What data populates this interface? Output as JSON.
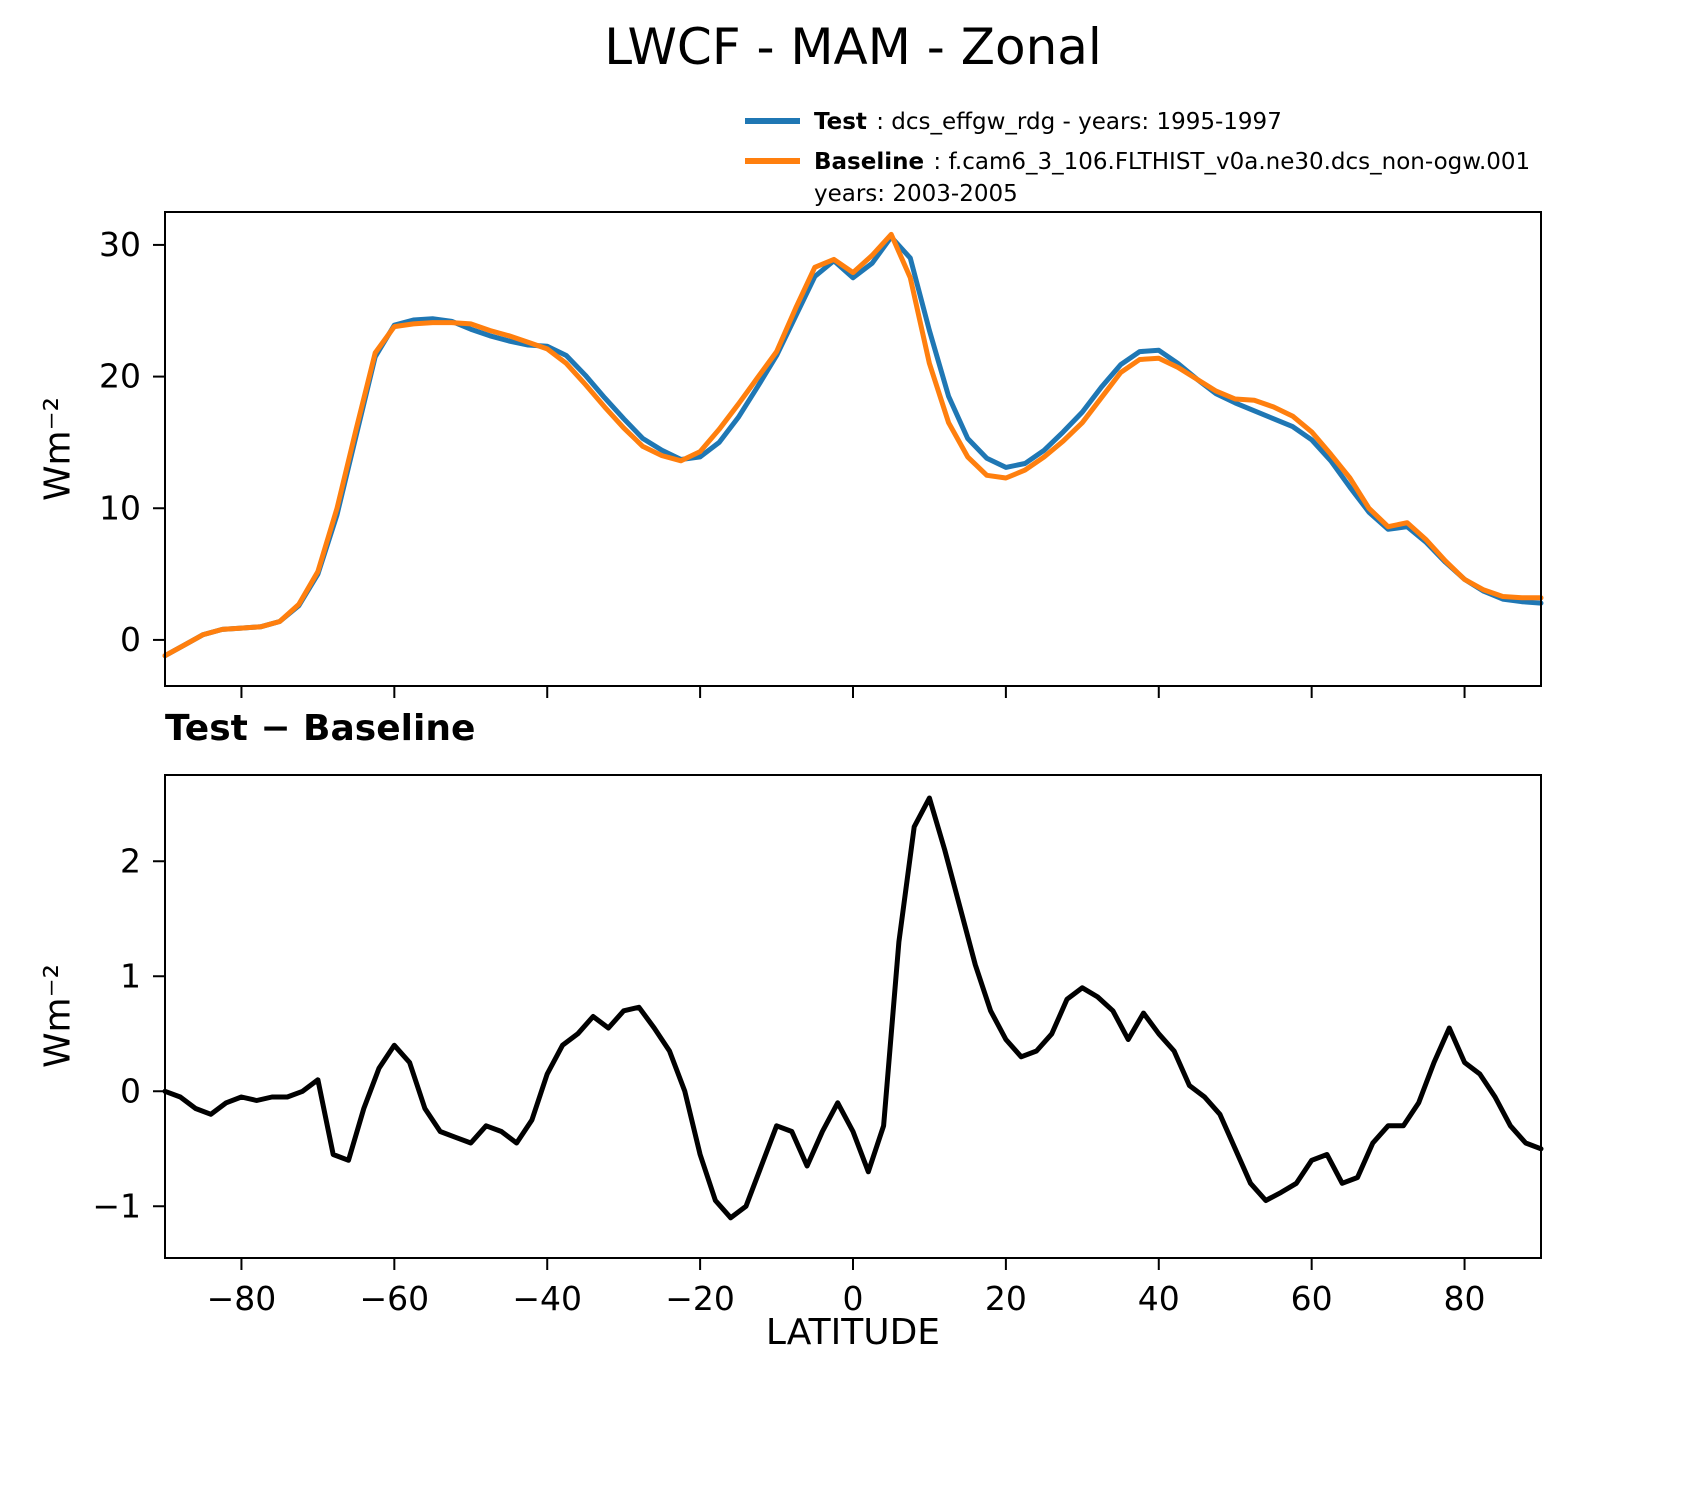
{
  "title": "LWCF - MAM - Zonal",
  "legend": {
    "items": [
      {
        "name": "Test",
        "label_bold": "Test",
        "label_rest": " : dcs_effgw_rdg - years: 1995-1997",
        "label_line2": "",
        "color": "#1f77b4"
      },
      {
        "name": "Baseline",
        "label_bold": "Baseline",
        "label_rest": " : f.cam6_3_106.FLTHIST_v0a.ne30.dcs_non-ogw.001",
        "label_line2": "years: 2003-2005",
        "color": "#ff7f0e"
      }
    ]
  },
  "chart_data": [
    {
      "type": "line",
      "title": "LWCF - MAM - Zonal",
      "xlabel": "",
      "ylabel": "Wm⁻²",
      "xlim": [
        -90,
        90
      ],
      "ylim": [
        -3.5,
        32.5
      ],
      "yticks": [
        0,
        10,
        20,
        30
      ],
      "xticks": [
        -80,
        -60,
        -40,
        -20,
        0,
        20,
        40,
        60,
        80
      ],
      "show_xtick_labels": false,
      "grid": false,
      "legend_position": "upper-right-above",
      "x": [
        -90,
        -87.5,
        -85,
        -82.5,
        -80,
        -77.5,
        -75,
        -72.5,
        -70,
        -67.5,
        -65,
        -62.5,
        -60,
        -57.5,
        -55,
        -52.5,
        -50,
        -47.5,
        -45,
        -42.5,
        -40,
        -37.5,
        -35,
        -32.5,
        -30,
        -27.5,
        -25,
        -22.5,
        -20,
        -17.5,
        -15,
        -12.5,
        -10,
        -7.5,
        -5,
        -2.5,
        0,
        2.5,
        5,
        7.5,
        10,
        12.5,
        15,
        17.5,
        20,
        22.5,
        25,
        27.5,
        30,
        32.5,
        35,
        37.5,
        40,
        42.5,
        45,
        47.5,
        50,
        52.5,
        55,
        57.5,
        60,
        62.5,
        65,
        67.5,
        70,
        72.5,
        75,
        77.5,
        80,
        82.5,
        85,
        87.5,
        90
      ],
      "series": [
        {
          "name": "Test",
          "color": "#1f77b4",
          "values": [
            -1.2,
            -0.4,
            0.4,
            0.8,
            0.9,
            1.0,
            1.4,
            2.6,
            5.0,
            9.5,
            15.5,
            21.5,
            23.9,
            24.3,
            24.4,
            24.2,
            23.6,
            23.1,
            22.7,
            22.4,
            22.3,
            21.6,
            20.1,
            18.4,
            16.8,
            15.3,
            14.4,
            13.7,
            13.9,
            15.0,
            16.9,
            19.2,
            21.6,
            24.6,
            27.6,
            28.8,
            27.5,
            28.6,
            30.6,
            29.0,
            23.5,
            18.5,
            15.3,
            13.8,
            13.1,
            13.4,
            14.4,
            15.8,
            17.3,
            19.2,
            20.9,
            21.9,
            22.0,
            21.0,
            19.8,
            18.7,
            18.0,
            17.4,
            16.8,
            16.2,
            15.2,
            13.6,
            11.6,
            9.7,
            8.4,
            8.6,
            7.4,
            5.9,
            4.6,
            3.7,
            3.1,
            2.9,
            2.8
          ]
        },
        {
          "name": "Baseline",
          "color": "#ff7f0e",
          "values": [
            -1.2,
            -0.4,
            0.4,
            0.8,
            0.9,
            1.0,
            1.4,
            2.7,
            5.2,
            10.0,
            16.0,
            21.8,
            23.8,
            24.0,
            24.1,
            24.1,
            24.0,
            23.5,
            23.1,
            22.6,
            22.1,
            21.0,
            19.4,
            17.7,
            16.1,
            14.7,
            14.0,
            13.6,
            14.3,
            16.0,
            17.9,
            19.9,
            21.9,
            25.2,
            28.3,
            28.9,
            27.9,
            29.2,
            30.8,
            27.5,
            21.0,
            16.5,
            13.9,
            12.5,
            12.3,
            12.9,
            13.9,
            15.1,
            16.5,
            18.4,
            20.3,
            21.3,
            21.4,
            20.7,
            19.8,
            18.9,
            18.3,
            18.2,
            17.7,
            17.0,
            15.8,
            14.1,
            12.3,
            10.0,
            8.6,
            8.9,
            7.6,
            6.0,
            4.6,
            3.8,
            3.3,
            3.2,
            3.2
          ]
        }
      ]
    },
    {
      "type": "line",
      "title": "Test − Baseline",
      "xlabel": "LATITUDE",
      "ylabel": "Wm⁻²",
      "xlim": [
        -90,
        90
      ],
      "ylim": [
        -1.45,
        2.75
      ],
      "yticks": [
        -1,
        0,
        1,
        2
      ],
      "xticks": [
        -80,
        -60,
        -40,
        -20,
        0,
        20,
        40,
        60,
        80
      ],
      "show_xtick_labels": true,
      "grid": false,
      "x": [
        -90,
        -88,
        -86,
        -84,
        -82,
        -80,
        -78,
        -76,
        -74,
        -72,
        -70,
        -68,
        -66,
        -64,
        -62,
        -60,
        -58,
        -56,
        -54,
        -52,
        -50,
        -48,
        -46,
        -44,
        -42,
        -40,
        -38,
        -36,
        -34,
        -32,
        -30,
        -28,
        -26,
        -24,
        -22,
        -20,
        -18,
        -16,
        -14,
        -12,
        -10,
        -8,
        -6,
        -4,
        -2,
        0,
        2,
        4,
        6,
        8,
        10,
        12,
        14,
        16,
        18,
        20,
        22,
        24,
        26,
        28,
        30,
        32,
        34,
        36,
        38,
        40,
        42,
        44,
        46,
        48,
        50,
        52,
        54,
        56,
        58,
        60,
        62,
        64,
        66,
        68,
        70,
        72,
        74,
        76,
        78,
        80,
        82,
        84,
        86,
        88,
        90
      ],
      "series": [
        {
          "name": "Test − Baseline",
          "color": "#000000",
          "values": [
            0,
            -0.05,
            -0.15,
            -0.2,
            -0.1,
            -0.05,
            -0.08,
            -0.05,
            -0.05,
            0,
            0.1,
            -0.55,
            -0.6,
            -0.15,
            0.2,
            0.4,
            0.25,
            -0.15,
            -0.35,
            -0.4,
            -0.45,
            -0.3,
            -0.35,
            -0.45,
            -0.25,
            0.15,
            0.4,
            0.5,
            0.65,
            0.55,
            0.7,
            0.73,
            0.55,
            0.35,
            0,
            -0.55,
            -0.95,
            -1.1,
            -1.0,
            -0.65,
            -0.3,
            -0.35,
            -0.65,
            -0.35,
            -0.1,
            -0.35,
            -0.7,
            -0.3,
            1.3,
            2.3,
            2.55,
            2.1,
            1.6,
            1.1,
            0.7,
            0.45,
            0.3,
            0.35,
            0.5,
            0.8,
            0.9,
            0.82,
            0.7,
            0.45,
            0.68,
            0.5,
            0.35,
            0.05,
            -0.05,
            -0.2,
            -0.5,
            -0.8,
            -0.95,
            -0.88,
            -0.8,
            -0.6,
            -0.55,
            -0.8,
            -0.75,
            -0.45,
            -0.3,
            -0.3,
            -0.1,
            0.25,
            0.55,
            0.25,
            0.15,
            -0.05,
            -0.3,
            -0.45,
            -0.5
          ]
        }
      ]
    }
  ]
}
